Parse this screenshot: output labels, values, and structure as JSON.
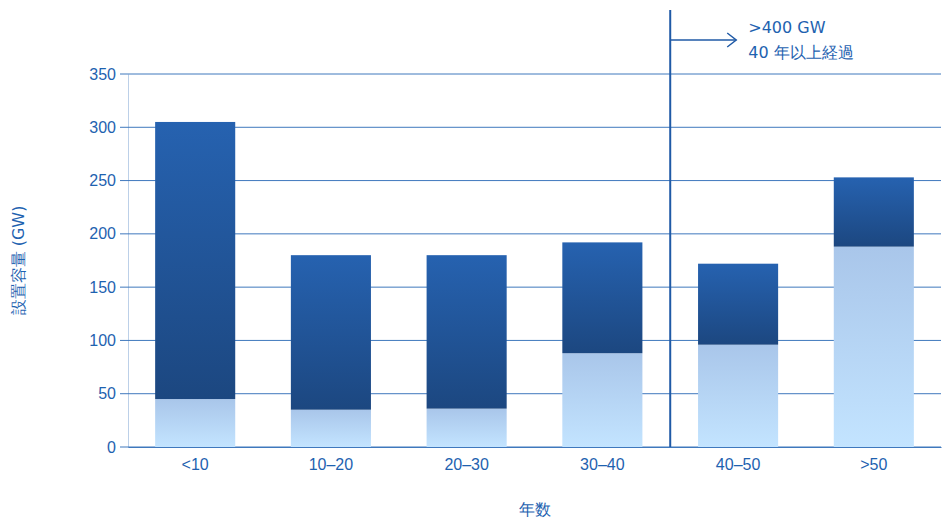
{
  "chart_data": {
    "type": "bar",
    "stacked": true,
    "grid": true,
    "xlabel": "年数",
    "ylabel": "設置容量 (GW)",
    "categories": [
      "<10",
      "10–20",
      "20–30",
      "30–40",
      "40–50",
      ">50"
    ],
    "series": [
      {
        "color": "#a9c6ea",
        "values": [
          45,
          35,
          36,
          88,
          96,
          188
        ]
      },
      {
        "color": "#1f4f8e",
        "values": [
          260,
          145,
          144,
          104,
          76,
          65
        ]
      }
    ],
    "ylim": [
      0,
      350
    ],
    "yticks": [
      0,
      50,
      100,
      150,
      200,
      250,
      300,
      350
    ],
    "annotations": [
      ">400 GW",
      "40 年以上経過"
    ]
  }
}
